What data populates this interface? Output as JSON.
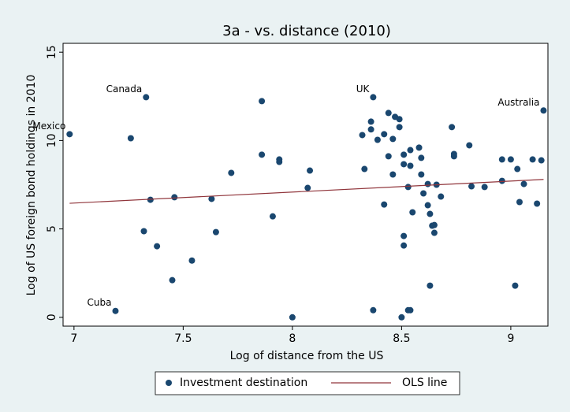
{
  "chart_data": {
    "type": "scatter",
    "title": "3a - vs. distance (2010)",
    "x_label": "Log of distance from the US",
    "y_label": "Log of US foreign bond holdings in 2010",
    "xlim": [
      6.95,
      9.17
    ],
    "xticks": [
      7,
      7.5,
      8,
      8.5,
      9
    ],
    "ylim": [
      -0.5,
      15.5
    ],
    "yticks": [
      0,
      5,
      10,
      15
    ],
    "grid": false,
    "legend": "bottom",
    "series": [
      {
        "name": "Investment destination",
        "color": "#1a476f",
        "mode": "markers",
        "x": [
          6.98,
          7.33,
          7.19,
          7.26,
          7.32,
          7.35,
          7.38,
          7.45,
          7.46,
          7.54,
          7.63,
          7.65,
          7.72,
          7.86,
          7.86,
          7.94,
          7.94,
          7.91,
          8.0,
          8.08,
          8.07,
          8.32,
          8.33,
          8.37,
          8.36,
          8.36,
          8.37,
          8.39,
          8.42,
          8.42,
          8.44,
          8.44,
          8.46,
          8.46,
          8.47,
          8.49,
          8.49,
          8.5,
          8.51,
          8.51,
          8.51,
          8.51,
          8.53,
          8.53,
          8.54,
          8.54,
          8.54,
          8.55,
          8.58,
          8.59,
          8.59,
          8.6,
          8.62,
          8.62,
          8.63,
          8.63,
          8.64,
          8.65,
          8.65,
          8.66,
          8.68,
          8.73,
          8.74,
          8.74,
          8.81,
          8.82,
          8.88,
          8.96,
          8.96,
          9.0,
          9.02,
          9.03,
          9.04,
          9.06,
          9.1,
          9.12,
          9.14,
          9.15
        ],
        "values": [
          10.36,
          12.45,
          0.36,
          10.13,
          4.87,
          6.65,
          4.02,
          2.1,
          6.79,
          3.21,
          6.7,
          4.82,
          8.17,
          12.23,
          9.2,
          8.93,
          8.79,
          5.71,
          0.0,
          8.3,
          7.32,
          10.31,
          8.39,
          12.45,
          11.07,
          10.63,
          0.4,
          10.04,
          10.36,
          6.38,
          11.56,
          9.11,
          10.09,
          8.08,
          11.34,
          11.21,
          10.76,
          0.0,
          8.66,
          9.2,
          4.6,
          4.06,
          0.4,
          7.37,
          0.4,
          9.46,
          8.57,
          5.94,
          9.6,
          9.02,
          8.08,
          7.01,
          7.54,
          6.34,
          5.85,
          1.79,
          5.18,
          5.22,
          4.78,
          7.5,
          6.83,
          10.76,
          9.24,
          9.11,
          9.73,
          7.41,
          7.37,
          8.93,
          7.72,
          8.93,
          1.79,
          8.39,
          6.52,
          7.54,
          8.93,
          6.43,
          8.88,
          11.7
        ]
      },
      {
        "name": "OLS line",
        "color": "#90353b",
        "mode": "line",
        "x": [
          6.98,
          9.15
        ],
        "values": [
          6.45,
          7.8
        ]
      }
    ],
    "point_labels": [
      {
        "label": "Mexico",
        "index": 0
      },
      {
        "label": "Canada",
        "index": 1
      },
      {
        "label": "Cuba",
        "index": 2
      },
      {
        "label": "UK",
        "index": 23
      },
      {
        "label": "Australia",
        "index": 77
      }
    ]
  }
}
